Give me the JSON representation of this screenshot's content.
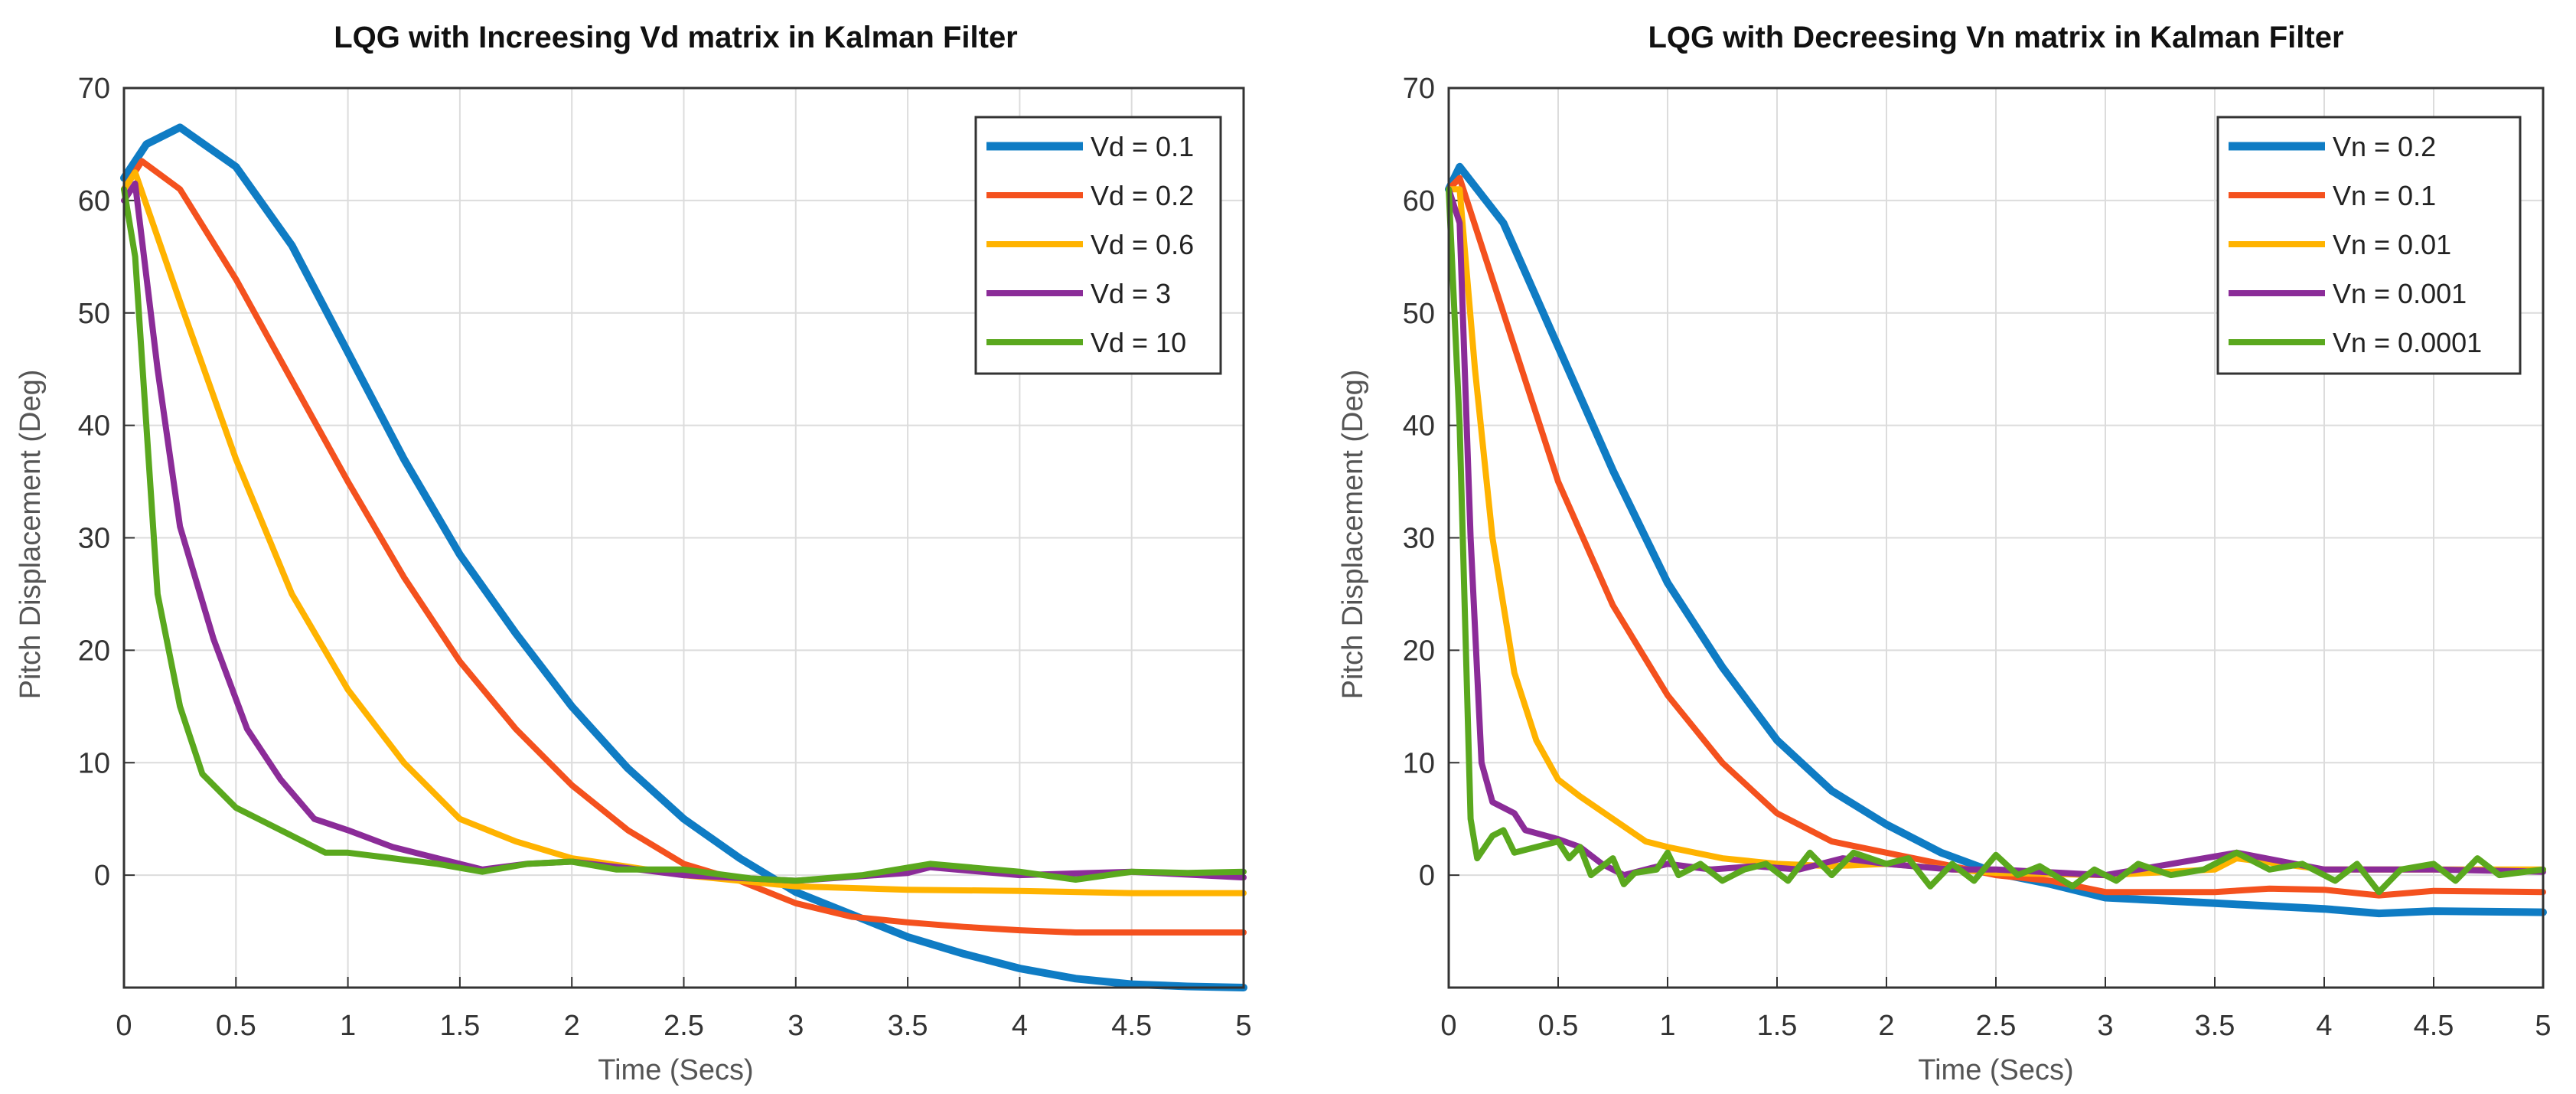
{
  "chart_data": [
    {
      "type": "line",
      "title": "LQG with Increesing Vd matrix in Kalman Filter",
      "xlabel": "Time (Secs)",
      "ylabel": "Pitch Displacement (Deg)",
      "xlim": [
        0,
        5
      ],
      "ylim": [
        -10,
        70
      ],
      "xticks": [
        "0",
        "0.5",
        "1",
        "1.5",
        "2",
        "2.5",
        "3",
        "3.5",
        "4",
        "4.5",
        "5"
      ],
      "yticks": [
        "0",
        "10",
        "20",
        "30",
        "40",
        "50",
        "60",
        "70"
      ],
      "grid": true,
      "legend_position": "top-right",
      "series": [
        {
          "name": "Vd = 0.1",
          "color": "#0f7cc4",
          "points": [
            [
              0,
              62
            ],
            [
              0.1,
              65
            ],
            [
              0.25,
              66.5
            ],
            [
              0.5,
              63
            ],
            [
              0.75,
              56
            ],
            [
              1,
              46.5
            ],
            [
              1.25,
              37
            ],
            [
              1.5,
              28.5
            ],
            [
              1.75,
              21.5
            ],
            [
              2,
              15
            ],
            [
              2.25,
              9.5
            ],
            [
              2.5,
              5
            ],
            [
              2.75,
              1.5
            ],
            [
              3,
              -1.5
            ],
            [
              3.25,
              -3.5
            ],
            [
              3.5,
              -5.5
            ],
            [
              3.75,
              -7
            ],
            [
              4,
              -8.3
            ],
            [
              4.25,
              -9.2
            ],
            [
              4.5,
              -9.7
            ],
            [
              4.75,
              -9.9
            ],
            [
              5,
              -10
            ]
          ]
        },
        {
          "name": "Vd = 0.2",
          "color": "#f4511e",
          "points": [
            [
              0,
              61
            ],
            [
              0.08,
              63.5
            ],
            [
              0.25,
              61
            ],
            [
              0.5,
              53
            ],
            [
              0.75,
              44
            ],
            [
              1,
              35
            ],
            [
              1.25,
              26.5
            ],
            [
              1.5,
              19
            ],
            [
              1.75,
              13
            ],
            [
              2,
              8
            ],
            [
              2.25,
              4
            ],
            [
              2.5,
              1
            ],
            [
              2.75,
              -0.5
            ],
            [
              3,
              -2.5
            ],
            [
              3.25,
              -3.7
            ],
            [
              3.5,
              -4.2
            ],
            [
              3.75,
              -4.6
            ],
            [
              4,
              -4.9
            ],
            [
              4.25,
              -5.1
            ],
            [
              4.5,
              -5.1
            ],
            [
              5,
              -5.1
            ]
          ]
        },
        {
          "name": "Vd = 0.6",
          "color": "#ffb300",
          "points": [
            [
              0,
              61
            ],
            [
              0.05,
              62.5
            ],
            [
              0.25,
              51
            ],
            [
              0.5,
              37
            ],
            [
              0.75,
              25
            ],
            [
              1,
              16.5
            ],
            [
              1.25,
              10
            ],
            [
              1.5,
              5
            ],
            [
              1.75,
              3
            ],
            [
              2,
              1.5
            ],
            [
              2.5,
              0
            ],
            [
              3,
              -1
            ],
            [
              3.5,
              -1.3
            ],
            [
              4,
              -1.4
            ],
            [
              4.5,
              -1.6
            ],
            [
              5,
              -1.6
            ]
          ]
        },
        {
          "name": "Vd = 3",
          "color": "#8b2c98",
          "points": [
            [
              0,
              60
            ],
            [
              0.05,
              61.5
            ],
            [
              0.15,
              45
            ],
            [
              0.25,
              31
            ],
            [
              0.4,
              21
            ],
            [
              0.55,
              13
            ],
            [
              0.7,
              8.5
            ],
            [
              0.85,
              5
            ],
            [
              1,
              4
            ],
            [
              1.2,
              2.5
            ],
            [
              1.4,
              1.5
            ],
            [
              1.6,
              0.5
            ],
            [
              1.8,
              1
            ],
            [
              2,
              1.2
            ],
            [
              2.3,
              0.5
            ],
            [
              2.5,
              0
            ],
            [
              3,
              -0.5
            ],
            [
              3.5,
              0.2
            ],
            [
              3.6,
              0.7
            ],
            [
              4,
              0
            ],
            [
              4.5,
              0.3
            ],
            [
              5,
              -0.2
            ]
          ]
        },
        {
          "name": "Vd = 10",
          "color": "#5aa81e",
          "points": [
            [
              0,
              61
            ],
            [
              0.05,
              55
            ],
            [
              0.15,
              25
            ],
            [
              0.25,
              15
            ],
            [
              0.35,
              9
            ],
            [
              0.5,
              6
            ],
            [
              0.6,
              5
            ],
            [
              0.75,
              3.5
            ],
            [
              0.9,
              2
            ],
            [
              1,
              2
            ],
            [
              1.2,
              1.5
            ],
            [
              1.4,
              1
            ],
            [
              1.6,
              0.3
            ],
            [
              1.8,
              1
            ],
            [
              2,
              1.2
            ],
            [
              2.2,
              0.5
            ],
            [
              2.5,
              0.5
            ],
            [
              2.8,
              -0.3
            ],
            [
              3,
              -0.5
            ],
            [
              3.3,
              0
            ],
            [
              3.6,
              1
            ],
            [
              4,
              0.3
            ],
            [
              4.25,
              -0.4
            ],
            [
              4.5,
              0.3
            ],
            [
              4.75,
              0.2
            ],
            [
              5,
              0.3
            ]
          ]
        }
      ]
    },
    {
      "type": "line",
      "title": "LQG with Decreesing Vn matrix in Kalman Filter",
      "xlabel": "Time (Secs)",
      "ylabel": "Pitch Displacement (Deg)",
      "xlim": [
        0,
        5
      ],
      "ylim": [
        -10,
        70
      ],
      "xticks": [
        "0",
        "0.5",
        "1",
        "1.5",
        "2",
        "2.5",
        "3",
        "3.5",
        "4",
        "4.5",
        "5"
      ],
      "yticks": [
        "0",
        "10",
        "20",
        "30",
        "40",
        "50",
        "60",
        "70"
      ],
      "grid": true,
      "legend_position": "top-right",
      "series": [
        {
          "name": "Vn = 0.2",
          "color": "#0f7cc4",
          "points": [
            [
              0,
              61
            ],
            [
              0.05,
              63
            ],
            [
              0.25,
              58
            ],
            [
              0.5,
              47
            ],
            [
              0.75,
              36
            ],
            [
              1,
              26
            ],
            [
              1.25,
              18.5
            ],
            [
              1.5,
              12
            ],
            [
              1.75,
              7.5
            ],
            [
              2,
              4.5
            ],
            [
              2.25,
              2
            ],
            [
              2.5,
              0.2
            ],
            [
              2.75,
              -0.8
            ],
            [
              3,
              -2
            ],
            [
              3.5,
              -2.5
            ],
            [
              4,
              -3
            ],
            [
              4.25,
              -3.4
            ],
            [
              4.5,
              -3.2
            ],
            [
              5,
              -3.3
            ]
          ]
        },
        {
          "name": "Vn = 0.1",
          "color": "#f4511e",
          "points": [
            [
              0,
              61
            ],
            [
              0.05,
              62
            ],
            [
              0.25,
              50
            ],
            [
              0.5,
              35
            ],
            [
              0.75,
              24
            ],
            [
              1,
              16
            ],
            [
              1.25,
              10
            ],
            [
              1.5,
              5.5
            ],
            [
              1.75,
              3
            ],
            [
              2,
              2
            ],
            [
              2.25,
              1
            ],
            [
              2.5,
              0
            ],
            [
              2.75,
              -0.5
            ],
            [
              3,
              -1.5
            ],
            [
              3.5,
              -1.5
            ],
            [
              3.75,
              -1.2
            ],
            [
              4,
              -1.3
            ],
            [
              4.25,
              -1.8
            ],
            [
              4.5,
              -1.4
            ],
            [
              5,
              -1.5
            ]
          ]
        },
        {
          "name": "Vn = 0.01",
          "color": "#ffb300",
          "points": [
            [
              0,
              61
            ],
            [
              0.05,
              61
            ],
            [
              0.12,
              45
            ],
            [
              0.2,
              30
            ],
            [
              0.3,
              18
            ],
            [
              0.4,
              12
            ],
            [
              0.5,
              8.5
            ],
            [
              0.6,
              7
            ],
            [
              0.75,
              5
            ],
            [
              0.9,
              3
            ],
            [
              1,
              2.5
            ],
            [
              1.25,
              1.5
            ],
            [
              1.5,
              1
            ],
            [
              1.75,
              0.8
            ],
            [
              2,
              1
            ],
            [
              2.5,
              0.2
            ],
            [
              3,
              0
            ],
            [
              3.5,
              0.5
            ],
            [
              3.6,
              1.5
            ],
            [
              4,
              0.5
            ],
            [
              5,
              0.5
            ]
          ]
        },
        {
          "name": "Vn = 0.001",
          "color": "#8b2c98",
          "points": [
            [
              0,
              61
            ],
            [
              0.05,
              58
            ],
            [
              0.1,
              30
            ],
            [
              0.15,
              10
            ],
            [
              0.2,
              6.5
            ],
            [
              0.3,
              5.5
            ],
            [
              0.35,
              4
            ],
            [
              0.5,
              3.2
            ],
            [
              0.6,
              2.5
            ],
            [
              0.7,
              1
            ],
            [
              0.8,
              0
            ],
            [
              0.9,
              0.5
            ],
            [
              1,
              1
            ],
            [
              1.2,
              0.5
            ],
            [
              1.4,
              0.8
            ],
            [
              1.6,
              0.5
            ],
            [
              1.8,
              1.5
            ],
            [
              2,
              1
            ],
            [
              2.3,
              0.5
            ],
            [
              2.5,
              0.5
            ],
            [
              3,
              0
            ],
            [
              3.6,
              2
            ],
            [
              4,
              0.5
            ],
            [
              4.5,
              0.5
            ],
            [
              5,
              0.3
            ]
          ]
        },
        {
          "name": "Vn = 0.0001",
          "color": "#5aa81e",
          "points": [
            [
              0,
              61
            ],
            [
              0.05,
              40
            ],
            [
              0.1,
              5
            ],
            [
              0.13,
              1.5
            ],
            [
              0.2,
              3.5
            ],
            [
              0.25,
              4
            ],
            [
              0.3,
              2
            ],
            [
              0.4,
              2.5
            ],
            [
              0.5,
              3
            ],
            [
              0.55,
              1.5
            ],
            [
              0.6,
              2.5
            ],
            [
              0.65,
              0
            ],
            [
              0.75,
              1.5
            ],
            [
              0.8,
              -0.8
            ],
            [
              0.85,
              0.2
            ],
            [
              0.95,
              0.5
            ],
            [
              1,
              2
            ],
            [
              1.05,
              0
            ],
            [
              1.15,
              1
            ],
            [
              1.25,
              -0.5
            ],
            [
              1.35,
              0.5
            ],
            [
              1.45,
              1
            ],
            [
              1.55,
              -0.5
            ],
            [
              1.65,
              2
            ],
            [
              1.75,
              0
            ],
            [
              1.85,
              2
            ],
            [
              2,
              1
            ],
            [
              2.1,
              1.5
            ],
            [
              2.2,
              -1
            ],
            [
              2.3,
              1
            ],
            [
              2.4,
              -0.5
            ],
            [
              2.5,
              1.8
            ],
            [
              2.6,
              0
            ],
            [
              2.7,
              0.8
            ],
            [
              2.85,
              -1
            ],
            [
              2.95,
              0.5
            ],
            [
              3.05,
              -0.5
            ],
            [
              3.15,
              1
            ],
            [
              3.3,
              0
            ],
            [
              3.45,
              0.5
            ],
            [
              3.6,
              2
            ],
            [
              3.75,
              0.5
            ],
            [
              3.9,
              1
            ],
            [
              4.05,
              -0.5
            ],
            [
              4.15,
              1
            ],
            [
              4.25,
              -1.5
            ],
            [
              4.35,
              0.5
            ],
            [
              4.5,
              1
            ],
            [
              4.6,
              -0.5
            ],
            [
              4.7,
              1.5
            ],
            [
              4.8,
              0
            ],
            [
              5,
              0.5
            ]
          ]
        }
      ]
    }
  ]
}
